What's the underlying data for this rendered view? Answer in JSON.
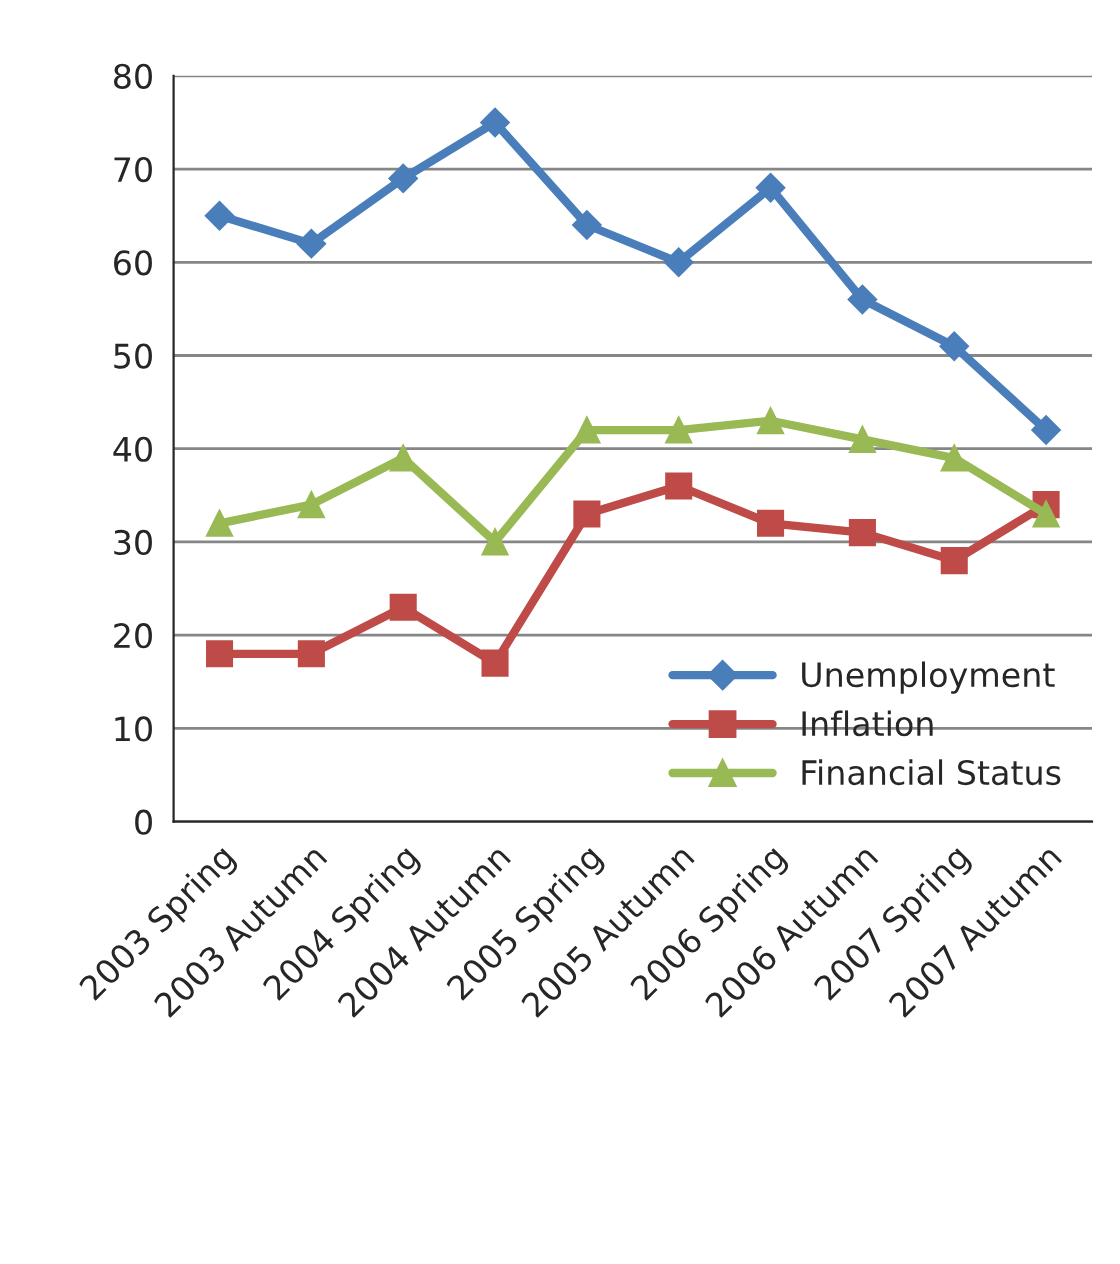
{
  "chart_data": {
    "type": "line",
    "categories": [
      "2003 Spring",
      "2003 Autumn",
      "2004 Spring",
      "2004 Autumn",
      "2005 Spring",
      "2005 Autumn",
      "2006 Spring",
      "2006 Autumn",
      "2007 Spring",
      "2007 Autumn"
    ],
    "series": [
      {
        "name": "Unemployment",
        "color": "#4a7ebb",
        "marker": "diamond",
        "values": [
          65,
          62,
          69,
          75,
          64,
          60,
          68,
          56,
          51,
          42
        ]
      },
      {
        "name": "Inflation",
        "color": "#be4b48",
        "marker": "square",
        "values": [
          18,
          18,
          23,
          17,
          33,
          36,
          32,
          31,
          28,
          34
        ]
      },
      {
        "name": "Financial Status",
        "color": "#98b954",
        "marker": "triangle",
        "values": [
          32,
          34,
          39,
          30,
          42,
          42,
          43,
          41,
          39,
          33
        ]
      }
    ],
    "ylim": [
      0,
      80
    ],
    "yticks": [
      0,
      10,
      20,
      30,
      40,
      50,
      60,
      70,
      80
    ],
    "grid": "y",
    "legend": "bottom right",
    "line_style": "solid"
  }
}
